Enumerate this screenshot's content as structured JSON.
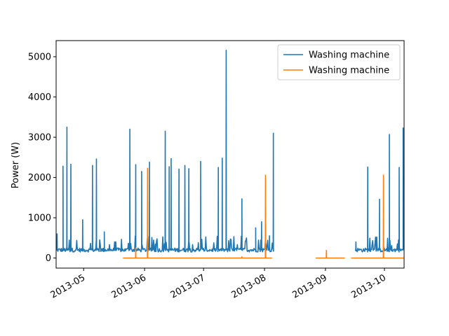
{
  "chart_data": {
    "type": "line",
    "title": "",
    "xlabel": "",
    "ylabel": "Power (W)",
    "x_axis_type": "date",
    "xlim": [
      "2013-04-17",
      "2013-10-11"
    ],
    "ylim": [
      -250,
      5400
    ],
    "x_ticks": [
      "2013-05-01",
      "2013-06-01",
      "2013-07-01",
      "2013-08-01",
      "2013-09-01",
      "2013-10-01"
    ],
    "x_tick_labels": [
      "2013-05",
      "2013-06",
      "2013-07",
      "2013-08",
      "2013-09",
      "2013-10"
    ],
    "y_ticks": [
      0,
      1000,
      2000,
      3000,
      4000,
      5000
    ],
    "y_tick_labels": [
      "0",
      "1000",
      "2000",
      "3000",
      "4000",
      "5000"
    ],
    "grid": false,
    "legend_position": "top-right",
    "series": [
      {
        "name": "Washing machine",
        "color": "#1f77b4",
        "segments": [
          {
            "baseline": [
              150,
              250
            ],
            "start": "2013-04-17",
            "end": "2013-08-06",
            "peaks": [
              [
                "2013-04-17",
                600
              ],
              [
                "2013-04-20",
                2280
              ],
              [
                "2013-04-22",
                3250
              ],
              [
                "2013-04-24",
                2330
              ],
              [
                "2013-04-30",
                950
              ],
              [
                "2013-05-05",
                2300
              ],
              [
                "2013-05-07",
                2460
              ],
              [
                "2013-05-11",
                650
              ],
              [
                "2013-05-24",
                3200
              ],
              [
                "2013-05-27",
                2320
              ],
              [
                "2013-05-30",
                2150
              ],
              [
                "2013-06-03",
                2380
              ],
              [
                "2013-06-11",
                3150
              ],
              [
                "2013-06-13",
                2270
              ],
              [
                "2013-06-14",
                2470
              ],
              [
                "2013-06-18",
                2210
              ],
              [
                "2013-06-21",
                2300
              ],
              [
                "2013-06-23",
                2220
              ],
              [
                "2013-06-29",
                2400
              ],
              [
                "2013-07-08",
                2250
              ],
              [
                "2013-07-10",
                2480
              ],
              [
                "2013-07-12",
                5160
              ],
              [
                "2013-07-20",
                1470
              ],
              [
                "2013-07-27",
                750
              ],
              [
                "2013-07-30",
                900
              ],
              [
                "2013-08-03",
                550
              ],
              [
                "2013-08-05",
                3100
              ]
            ]
          },
          {
            "baseline": [
              150,
              250
            ],
            "start": "2013-09-16",
            "end": "2013-10-11",
            "peaks": [
              [
                "2013-09-16",
                400
              ],
              [
                "2013-09-22",
                2260
              ],
              [
                "2013-09-28",
                1460
              ],
              [
                "2013-10-03",
                3070
              ],
              [
                "2013-10-08",
                2250
              ],
              [
                "2013-10-10",
                3230
              ],
              [
                "2013-10-11",
                2440
              ]
            ]
          }
        ]
      },
      {
        "name": "Washing machine",
        "color": "#ff7f0e",
        "segments": [
          {
            "baseline": [
              0,
              0
            ],
            "start": "2013-05-21",
            "end": "2013-08-05",
            "peaks": [
              [
                "2013-05-27",
                250
              ],
              [
                "2013-06-02",
                2230
              ],
              [
                "2013-07-20",
                30
              ],
              [
                "2013-08-01",
                2060
              ]
            ]
          },
          {
            "baseline": [
              0,
              0
            ],
            "start": "2013-08-27",
            "end": "2013-09-11",
            "peaks": [
              [
                "2013-09-01",
                190
              ]
            ]
          },
          {
            "baseline": [
              0,
              0
            ],
            "start": "2013-09-14",
            "end": "2013-10-11",
            "peaks": [
              [
                "2013-09-30",
                2060
              ]
            ]
          }
        ]
      }
    ]
  }
}
